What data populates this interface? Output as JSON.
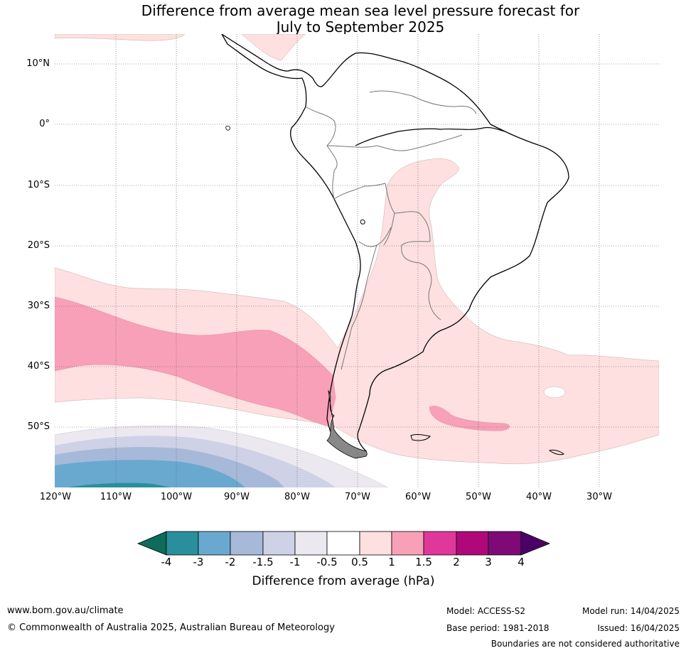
{
  "title": {
    "line1": "Difference from average mean sea level pressure forecast for",
    "line2": "July to September 2025"
  },
  "map": {
    "lat_labels": [
      "10°N",
      "0°",
      "10°S",
      "20°S",
      "30°S",
      "40°S",
      "50°S"
    ],
    "lon_labels": [
      "120°W",
      "110°W",
      "100°W",
      "90°W",
      "80°W",
      "70°W",
      "60°W",
      "50°W",
      "40°W",
      "30°W"
    ],
    "region": "South America",
    "gridlines": true,
    "colors": {
      "anom_-4": "#0f6b5a",
      "anom_-3": "#2a8f9c",
      "anom_-2": "#69a9cf",
      "anom_-1.5": "#a6b9d9",
      "anom_-1": "#cfd1e6",
      "anom_-0.5": "#ece8f0",
      "neutral": "#ffffff",
      "anom_0.5": "#fde0df",
      "anom_1": "#f8a0b8",
      "anom_1.5": "#e0379b",
      "anom_2": "#b0087a",
      "anom_3": "#7e0a77",
      "anom_4": "#4b0066"
    }
  },
  "colorbar": {
    "ticks": [
      "-4",
      "-3",
      "-2",
      "-1.5",
      "-1",
      "-0.5",
      "0.5",
      "1",
      "1.5",
      "2",
      "3",
      "4"
    ],
    "label": "Difference from average (hPa)"
  },
  "footer": {
    "website": "www.bom.gov.au/climate",
    "copyright": "© Commonwealth of Australia 2025, Australian Bureau of Meteorology",
    "model": "Model: ACCESS-S2",
    "base_period": "Base period: 1981-2018",
    "model_run": "Model run: 14/04/2025",
    "issued": "Issued: 16/04/2025",
    "disclaimer": "Boundaries are not considered authoritative"
  }
}
